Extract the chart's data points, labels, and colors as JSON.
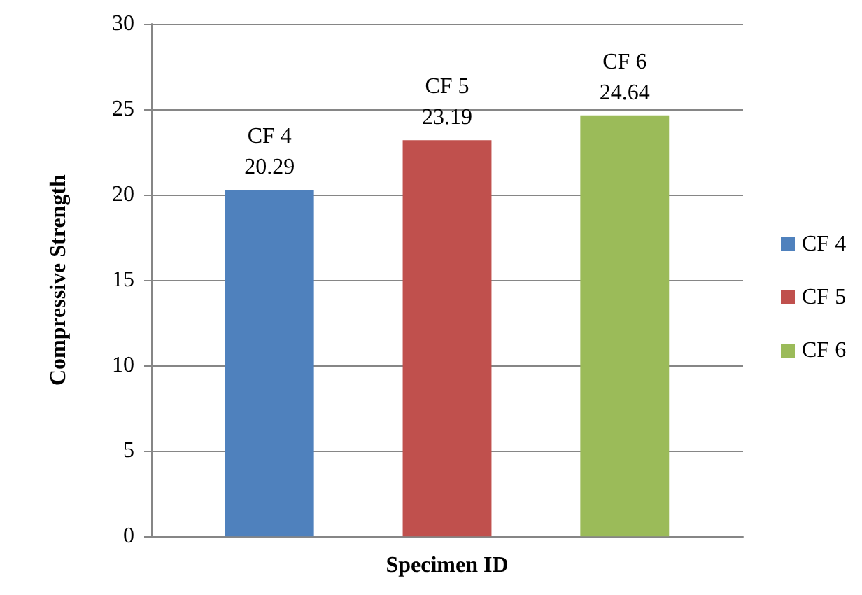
{
  "chart_data": {
    "type": "bar",
    "xlabel": "Specimen ID",
    "ylabel": "Compressive Strength",
    "categories": [
      null
    ],
    "series": [
      {
        "name": "CF 4",
        "color": "#4f81bd",
        "values": [
          20.29
        ]
      },
      {
        "name": "CF 5",
        "color": "#c0504d",
        "values": [
          23.19
        ]
      },
      {
        "name": "CF 6",
        "color": "#9bbb59",
        "values": [
          24.64
        ]
      }
    ],
    "ylim": [
      0,
      30
    ],
    "yticks": [
      0,
      5,
      10,
      15,
      20,
      25,
      30
    ],
    "grid": "y",
    "legend": "right",
    "data_labels": true
  }
}
